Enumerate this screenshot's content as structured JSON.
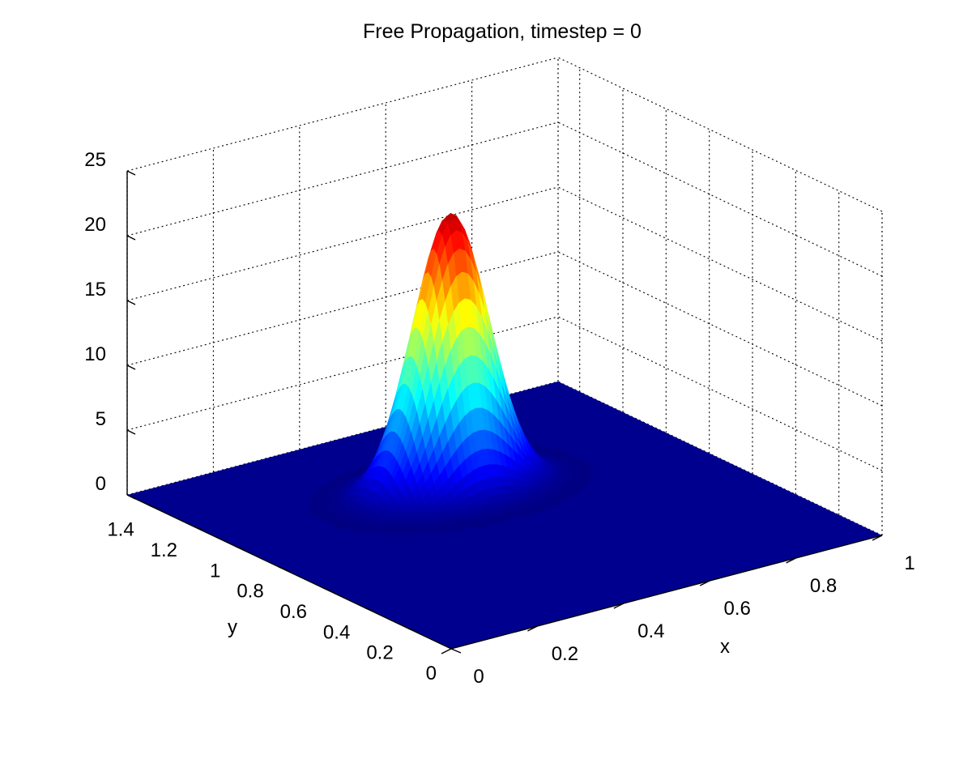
{
  "chart_data": {
    "type": "surface",
    "title": "Free Propagation, timestep = 0",
    "xlabel": "x",
    "ylabel": "y",
    "zlabel": "",
    "xlim": [
      0,
      1
    ],
    "ylim": [
      0,
      1.5
    ],
    "zlim": [
      0,
      25
    ],
    "xticks": [
      "0",
      "0.2",
      "0.4",
      "0.6",
      "0.8",
      "1"
    ],
    "yticks": [
      "0",
      "0.2",
      "0.4",
      "0.6",
      "0.8",
      "1",
      "1.2",
      "1.4"
    ],
    "zticks": [
      "0",
      "5",
      "10",
      "15",
      "20",
      "25"
    ],
    "grid": true,
    "colormap": "jet",
    "surface_color_floor": "#00008f",
    "peak": {
      "x": 0.5,
      "y": 1.0,
      "z": 21.3
    },
    "gaussian_sigma": 0.08
  }
}
